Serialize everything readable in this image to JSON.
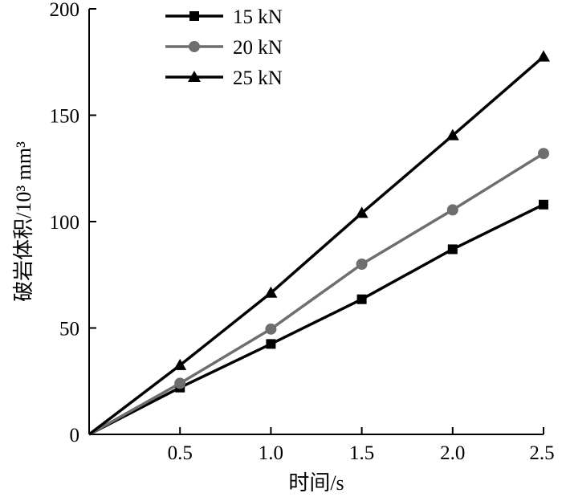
{
  "chart_data": {
    "type": "line",
    "title": "",
    "xlabel": "时间/s",
    "ylabel": "破岩体积/10³ mm³",
    "x": [
      0,
      0.5,
      1.0,
      1.5,
      2.0,
      2.5
    ],
    "x_ticks": [
      "0.5",
      "1.0",
      "1.5",
      "2.0",
      "2.5"
    ],
    "y_ticks": [
      "0",
      "50",
      "100",
      "150",
      "200"
    ],
    "xlim": [
      0,
      2.5
    ],
    "ylim": [
      0,
      200
    ],
    "grid": false,
    "legend_position": "top-left",
    "series": [
      {
        "name": "15 kN",
        "marker": "square",
        "color": "#000000",
        "values": [
          0,
          22,
          42.5,
          63.5,
          87,
          108
        ]
      },
      {
        "name": "20 kN",
        "marker": "circle",
        "color": "#6e6e6e",
        "values": [
          0,
          24,
          49.5,
          80,
          105.5,
          132
        ]
      },
      {
        "name": "25 kN",
        "marker": "triangle",
        "color": "#000000",
        "values": [
          0,
          32.5,
          66.5,
          104,
          140.5,
          177.5
        ]
      }
    ]
  }
}
